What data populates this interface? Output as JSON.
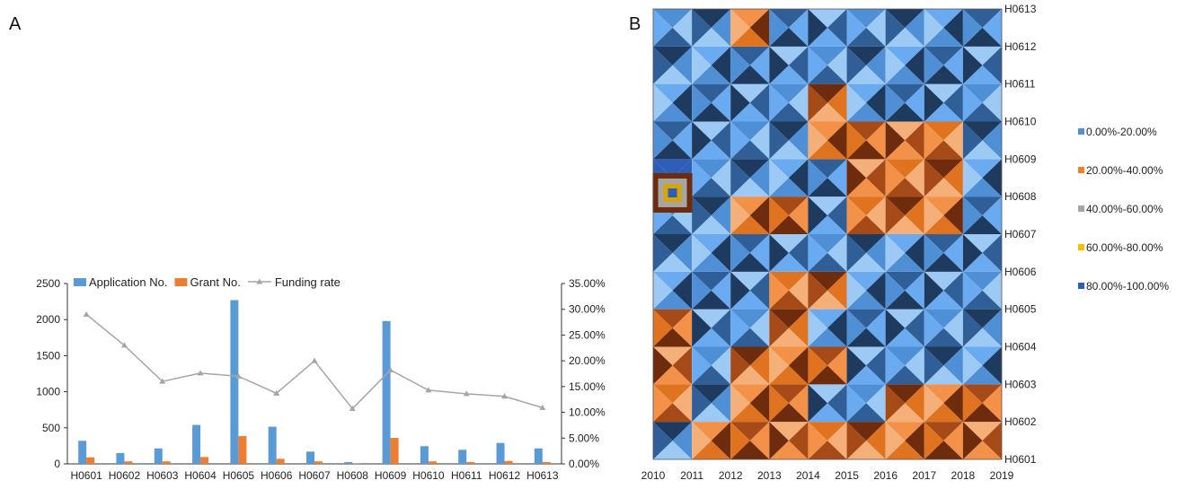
{
  "panels": {
    "a_label": "A",
    "b_label": "B"
  },
  "chart_data": [
    {
      "type": "bar",
      "categories": [
        "H0601",
        "H0602",
        "H0603",
        "H0604",
        "H0605",
        "H0606",
        "H0607",
        "H0608",
        "H0609",
        "H0610",
        "H0611",
        "H0612",
        "H0613"
      ],
      "series": [
        {
          "name": "Application No.",
          "type": "bar",
          "axis": "left",
          "color": "#5b9bd5",
          "values": [
            320,
            150,
            215,
            540,
            2270,
            515,
            170,
            25,
            1980,
            245,
            195,
            290,
            215
          ]
        },
        {
          "name": "Grant No.",
          "type": "bar",
          "axis": "left",
          "color": "#ed7d31",
          "values": [
            90,
            35,
            35,
            95,
            385,
            70,
            35,
            3,
            360,
            35,
            25,
            40,
            25
          ]
        },
        {
          "name": "Funding rate",
          "type": "line",
          "axis": "right",
          "color": "#a5a5a5",
          "values": [
            0.29,
            0.23,
            0.16,
            0.176,
            0.17,
            0.137,
            0.2,
            0.107,
            0.182,
            0.143,
            0.136,
            0.131,
            0.109
          ]
        }
      ],
      "left_axis": {
        "ylim": [
          0,
          2500
        ],
        "ticks": [
          "0",
          "500",
          "1000",
          "1500",
          "2000",
          "2500"
        ]
      },
      "right_axis": {
        "ylim": [
          0,
          0.35
        ],
        "ticks": [
          "0.00%",
          "5.00%",
          "10.00%",
          "15.00%",
          "20.00%",
          "25.00%",
          "30.00%",
          "35.00%"
        ]
      },
      "legend": "top"
    },
    {
      "type": "heatmap",
      "x": [
        "2010",
        "2011",
        "2012",
        "2013",
        "2014",
        "2015",
        "2016",
        "2017",
        "2018",
        "2019"
      ],
      "y": [
        "H0601",
        "H0602",
        "H0603",
        "H0604",
        "H0605",
        "H0606",
        "H0607",
        "H0608",
        "H0609",
        "H0610",
        "H0611",
        "H0612",
        "H0613"
      ],
      "legend": "right",
      "classes": [
        {
          "label": "0.00%-20.00%",
          "color": "#4f8fd6"
        },
        {
          "label": "20.00%-40.00%",
          "color": "#f07f2d"
        },
        {
          "label": "40.00%-60.00%",
          "color": "#a5a5a5"
        },
        {
          "label": "60.00%-80.00%",
          "color": "#f2c200"
        },
        {
          "label": "80.00%-100.00%",
          "color": "#2f5eb8"
        }
      ],
      "z_class_bottom_to_top": [
        [
          0,
          1,
          1,
          1,
          1,
          1,
          1,
          1,
          1,
          0
        ],
        [
          1,
          0,
          1,
          1,
          0,
          0,
          1,
          1,
          1,
          0
        ],
        [
          1,
          0,
          1,
          1,
          1,
          0,
          0,
          0,
          0,
          0
        ],
        [
          1,
          0,
          0,
          1,
          0,
          0,
          0,
          0,
          0,
          0
        ],
        [
          0,
          0,
          0,
          1,
          1,
          0,
          0,
          0,
          0,
          0
        ],
        [
          0,
          0,
          0,
          0,
          0,
          0,
          0,
          0,
          0,
          0
        ],
        [
          0,
          0,
          1,
          1,
          0,
          1,
          1,
          1,
          0,
          0
        ],
        [
          4,
          0,
          0,
          0,
          0,
          1,
          1,
          1,
          0,
          0
        ],
        [
          0,
          0,
          0,
          0,
          1,
          1,
          1,
          1,
          0,
          0
        ],
        [
          0,
          0,
          0,
          0,
          1,
          0,
          0,
          0,
          0,
          0
        ],
        [
          0,
          0,
          0,
          0,
          0,
          0,
          0,
          0,
          0,
          1
        ],
        [
          0,
          0,
          1,
          0,
          0,
          0,
          0,
          0,
          0,
          0
        ],
        [
          0,
          0,
          0,
          0,
          0,
          0,
          0,
          0,
          0,
          0
        ]
      ]
    }
  ]
}
